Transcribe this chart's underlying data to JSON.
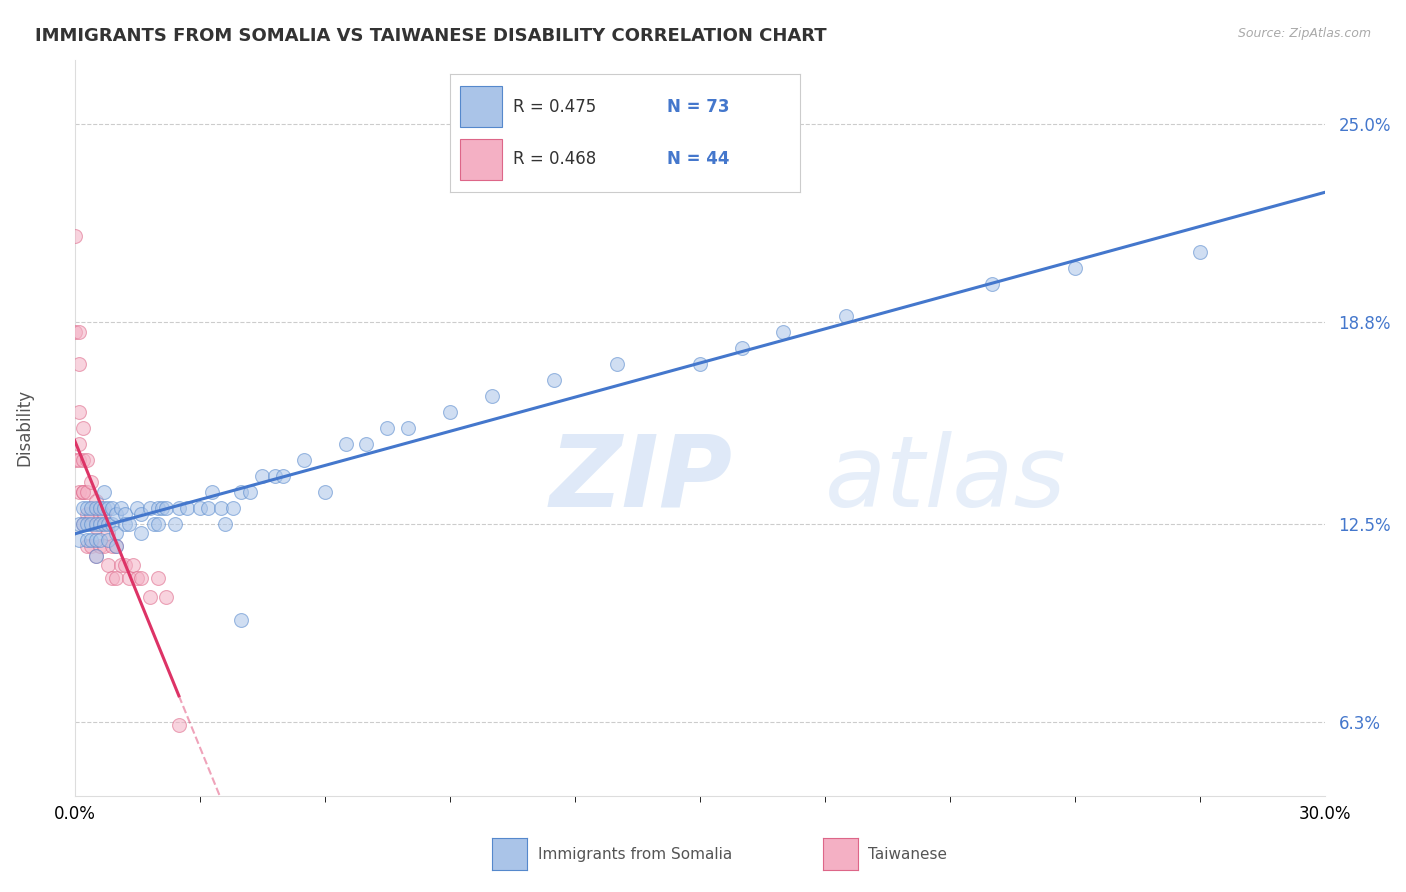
{
  "title": "IMMIGRANTS FROM SOMALIA VS TAIWANESE DISABILITY CORRELATION CHART",
  "source": "Source: ZipAtlas.com",
  "ylabel": "Disability",
  "xlim": [
    0.0,
    0.3
  ],
  "ylim": [
    0.04,
    0.27
  ],
  "yticks": [
    0.063,
    0.125,
    0.188,
    0.25
  ],
  "ytick_labels": [
    "6.3%",
    "12.5%",
    "18.8%",
    "25.0%"
  ],
  "xtick_labels": [
    "0.0%",
    "30.0%"
  ],
  "grid_color": "#cccccc",
  "background_color": "#ffffff",
  "somalia_color": "#aac4e8",
  "somalia_edge": "#5588cc",
  "taiwanese_color": "#f4b0c4",
  "taiwanese_edge": "#dd6688",
  "trend_somalia_color": "#4477cc",
  "trend_taiwanese_color": "#dd3366",
  "R_somalia": 0.475,
  "N_somalia": 73,
  "R_taiwanese": 0.468,
  "N_taiwanese": 44,
  "somalia_x": [
    0.001,
    0.001,
    0.002,
    0.002,
    0.003,
    0.003,
    0.003,
    0.004,
    0.004,
    0.004,
    0.005,
    0.005,
    0.005,
    0.005,
    0.006,
    0.006,
    0.006,
    0.007,
    0.007,
    0.007,
    0.008,
    0.008,
    0.008,
    0.009,
    0.009,
    0.01,
    0.01,
    0.01,
    0.011,
    0.012,
    0.012,
    0.013,
    0.015,
    0.016,
    0.016,
    0.018,
    0.019,
    0.02,
    0.02,
    0.021,
    0.022,
    0.024,
    0.025,
    0.027,
    0.03,
    0.032,
    0.033,
    0.035,
    0.036,
    0.038,
    0.04,
    0.042,
    0.045,
    0.048,
    0.05,
    0.055,
    0.06,
    0.065,
    0.07,
    0.075,
    0.08,
    0.09,
    0.1,
    0.115,
    0.13,
    0.15,
    0.16,
    0.17,
    0.185,
    0.22,
    0.24,
    0.27,
    0.04
  ],
  "somalia_y": [
    0.125,
    0.12,
    0.125,
    0.13,
    0.125,
    0.13,
    0.12,
    0.13,
    0.125,
    0.12,
    0.13,
    0.125,
    0.12,
    0.115,
    0.13,
    0.125,
    0.12,
    0.135,
    0.13,
    0.125,
    0.13,
    0.125,
    0.12,
    0.13,
    0.125,
    0.128,
    0.122,
    0.118,
    0.13,
    0.128,
    0.125,
    0.125,
    0.13,
    0.128,
    0.122,
    0.13,
    0.125,
    0.13,
    0.125,
    0.13,
    0.13,
    0.125,
    0.13,
    0.13,
    0.13,
    0.13,
    0.135,
    0.13,
    0.125,
    0.13,
    0.135,
    0.135,
    0.14,
    0.14,
    0.14,
    0.145,
    0.135,
    0.15,
    0.15,
    0.155,
    0.155,
    0.16,
    0.165,
    0.17,
    0.175,
    0.175,
    0.18,
    0.185,
    0.19,
    0.2,
    0.205,
    0.21,
    0.095
  ],
  "taiwanese_x": [
    0.0,
    0.0,
    0.0,
    0.001,
    0.001,
    0.001,
    0.001,
    0.001,
    0.001,
    0.002,
    0.002,
    0.002,
    0.002,
    0.002,
    0.003,
    0.003,
    0.003,
    0.003,
    0.004,
    0.004,
    0.004,
    0.005,
    0.005,
    0.005,
    0.006,
    0.006,
    0.007,
    0.007,
    0.008,
    0.008,
    0.009,
    0.009,
    0.01,
    0.01,
    0.011,
    0.012,
    0.013,
    0.014,
    0.015,
    0.016,
    0.018,
    0.02,
    0.022,
    0.025
  ],
  "taiwanese_y": [
    0.215,
    0.185,
    0.145,
    0.185,
    0.175,
    0.16,
    0.15,
    0.145,
    0.135,
    0.135,
    0.155,
    0.145,
    0.135,
    0.125,
    0.145,
    0.135,
    0.128,
    0.118,
    0.138,
    0.128,
    0.118,
    0.132,
    0.124,
    0.115,
    0.128,
    0.118,
    0.128,
    0.118,
    0.122,
    0.112,
    0.118,
    0.108,
    0.118,
    0.108,
    0.112,
    0.112,
    0.108,
    0.112,
    0.108,
    0.108,
    0.102,
    0.108,
    0.102,
    0.062
  ],
  "watermark_zip": "ZIP",
  "watermark_atlas": "atlas",
  "marker_size": 100,
  "alpha": 0.55
}
